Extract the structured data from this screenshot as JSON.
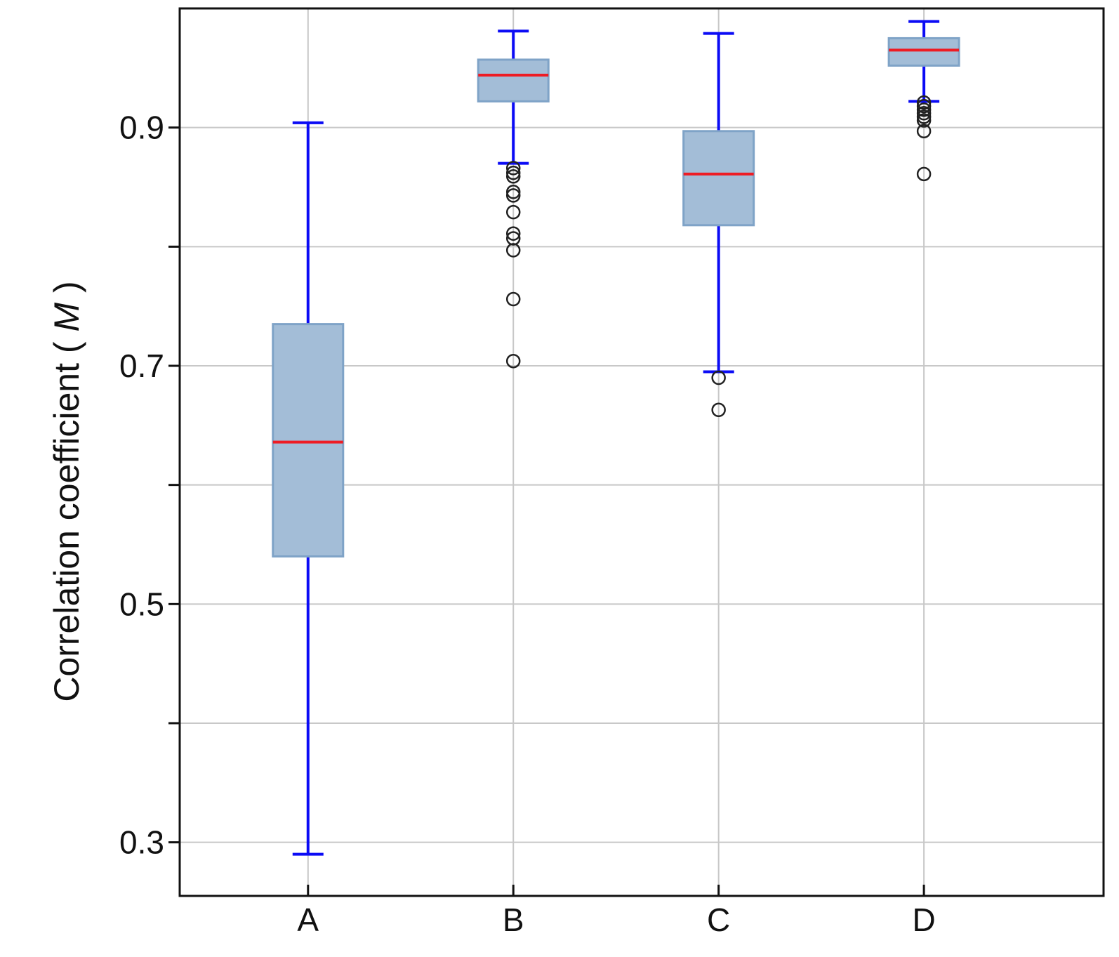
{
  "chart_data": {
    "type": "box",
    "title": "",
    "xlabel": "",
    "ylabel": {
      "text": "Correlation coefficient",
      "symbol": "M"
    },
    "ylim": [
      0.255,
      1.0
    ],
    "yticks": [
      0.3,
      0.4,
      0.5,
      0.6,
      0.7,
      0.8,
      0.9
    ],
    "ytick_labels": [
      "0.3",
      "",
      "0.5",
      "",
      "0.7",
      "",
      "0.9"
    ],
    "grid": true,
    "categories": [
      "A",
      "B",
      "C",
      "D"
    ],
    "boxes": [
      {
        "label": "A",
        "whisker_low": 0.29,
        "q1": 0.54,
        "median": 0.636,
        "q3": 0.735,
        "whisker_high": 0.904,
        "outliers": []
      },
      {
        "label": "B",
        "whisker_low": 0.87,
        "q1": 0.922,
        "median": 0.944,
        "q3": 0.957,
        "whisker_high": 0.981,
        "outliers": [
          0.866,
          0.862,
          0.859,
          0.846,
          0.843,
          0.829,
          0.811,
          0.807,
          0.797,
          0.756,
          0.704
        ]
      },
      {
        "label": "C",
        "whisker_low": 0.695,
        "q1": 0.818,
        "median": 0.861,
        "q3": 0.897,
        "whisker_high": 0.979,
        "outliers": [
          0.69,
          0.663
        ]
      },
      {
        "label": "D",
        "whisker_low": 0.922,
        "q1": 0.952,
        "median": 0.965,
        "q3": 0.975,
        "whisker_high": 0.989,
        "outliers": [
          0.921,
          0.918,
          0.915,
          0.912,
          0.909,
          0.906,
          0.897,
          0.861
        ]
      }
    ],
    "colors": {
      "box_fill": "#a3bdd7",
      "box_edge": "#7fa3c7",
      "whisker": "#0b0bf5",
      "median": "#ee1c24",
      "outlier_edge": "#222222",
      "grid": "#c8c8c8",
      "axis": "#111111"
    }
  }
}
